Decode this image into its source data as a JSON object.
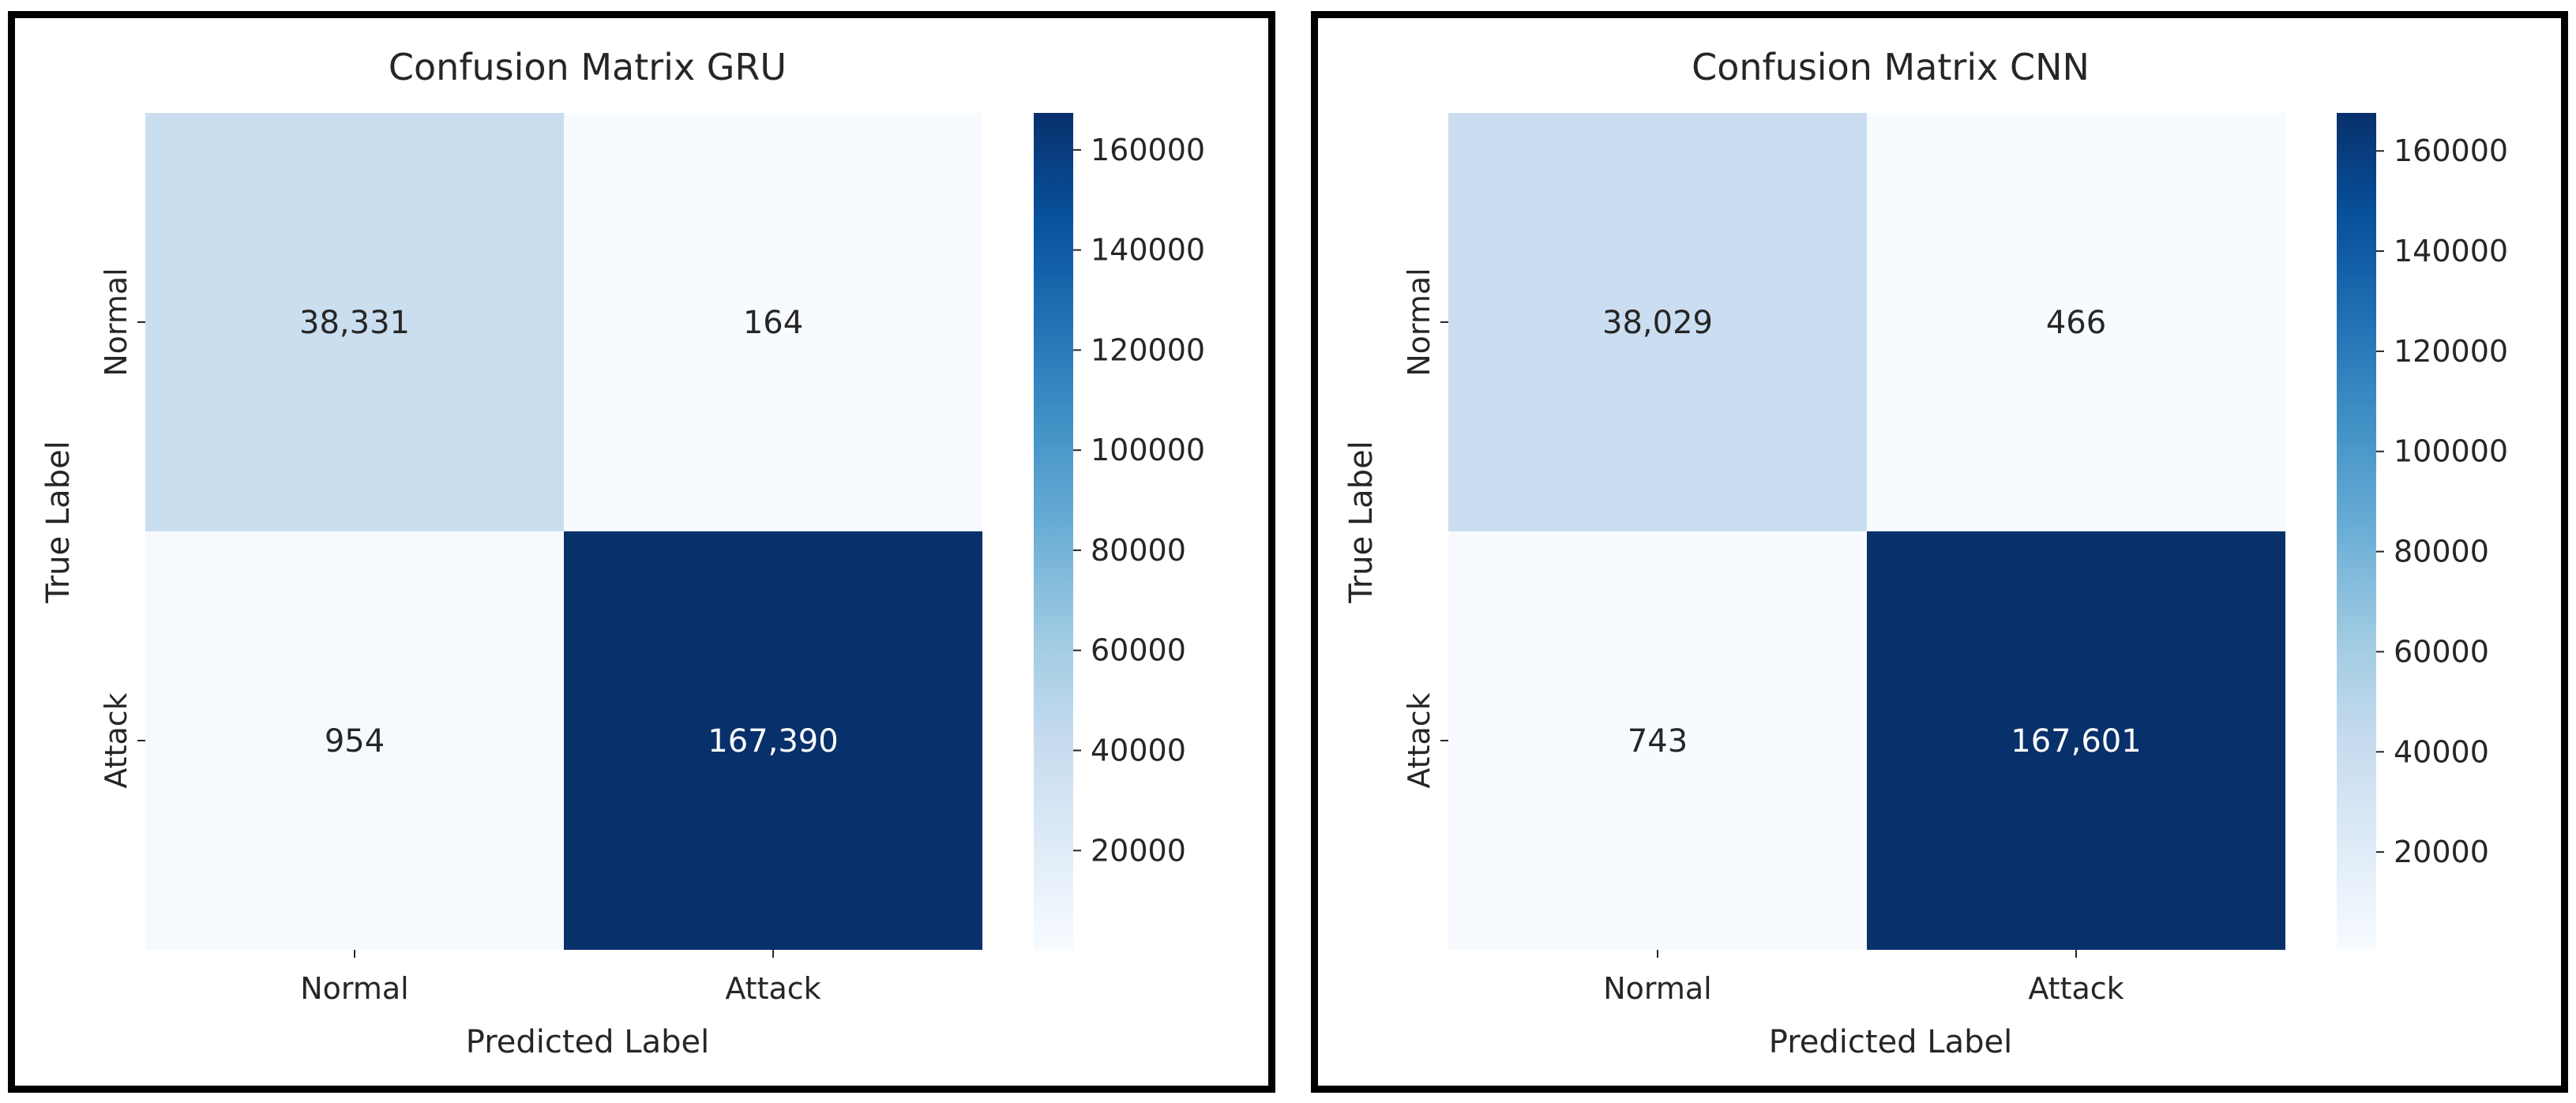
{
  "chart_data": [
    {
      "type": "heatmap",
      "title": "Confusion Matrix GRU",
      "xlabel": "Predicted Label",
      "ylabel": "True Label",
      "x_categories": [
        "Normal",
        "Attack"
      ],
      "y_categories": [
        "Normal",
        "Attack"
      ],
      "values": [
        [
          38331,
          164
        ],
        [
          954,
          167390
        ]
      ],
      "value_labels": [
        [
          "38,331",
          "164"
        ],
        [
          "954",
          "167,390"
        ]
      ],
      "colorscale": "Blues",
      "colorbar": {
        "min": 164,
        "max": 167390,
        "ticks": [
          20000,
          40000,
          60000,
          80000,
          100000,
          120000,
          140000,
          160000
        ]
      }
    },
    {
      "type": "heatmap",
      "title": "Confusion Matrix CNN",
      "xlabel": "Predicted Label",
      "ylabel": "True Label",
      "x_categories": [
        "Normal",
        "Attack"
      ],
      "y_categories": [
        "Normal",
        "Attack"
      ],
      "values": [
        [
          38029,
          466
        ],
        [
          743,
          167601
        ]
      ],
      "value_labels": [
        [
          "38,029",
          "466"
        ],
        [
          "743",
          "167,601"
        ]
      ],
      "colorscale": "Blues",
      "colorbar": {
        "min": 466,
        "max": 167601,
        "ticks": [
          20000,
          40000,
          60000,
          80000,
          100000,
          120000,
          140000,
          160000
        ]
      }
    }
  ],
  "colors": {
    "low": "#f7fbff",
    "high": "#08306b",
    "text_dark": "#262626",
    "text_light": "#ffffff",
    "frame": "#000000"
  }
}
